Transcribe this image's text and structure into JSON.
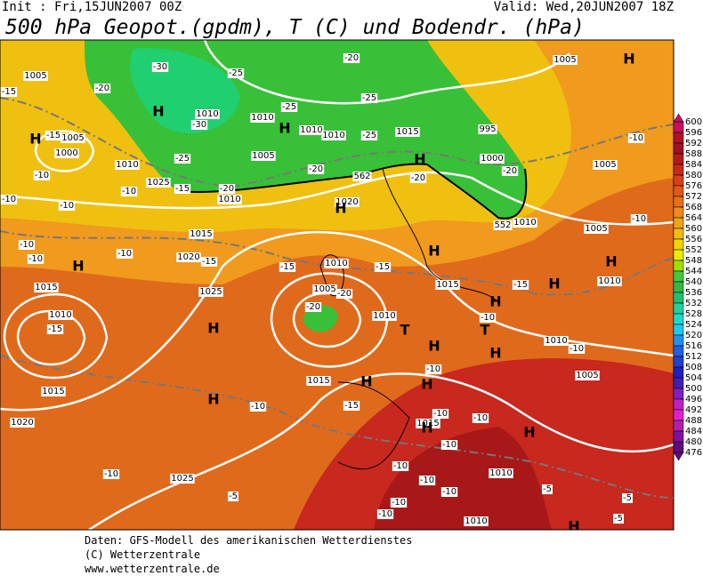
{
  "header": {
    "init": "Init : Fri,15JUN2007 00Z",
    "valid": "Valid: Wed,20JUN2007 18Z",
    "title": "500 hPa Geopot.(gpdm), T (C) und Bodendr. (hPa)"
  },
  "colorbar": {
    "levels": [
      600,
      596,
      592,
      588,
      584,
      580,
      576,
      572,
      568,
      564,
      560,
      556,
      552,
      548,
      544,
      540,
      536,
      532,
      528,
      524,
      520,
      516,
      512,
      508,
      504,
      500,
      496,
      492,
      488,
      484,
      480,
      476
    ],
    "colors": [
      "#c8105a",
      "#b0102a",
      "#a01020",
      "#b41a1a",
      "#c82a1a",
      "#d8401a",
      "#e0581a",
      "#e8701a",
      "#f08a1a",
      "#f0a41a",
      "#f0bc10",
      "#f0d400",
      "#e8ec00",
      "#a0e000",
      "#40c840",
      "#30b848",
      "#20c070",
      "#20d0a0",
      "#20d8d0",
      "#20c8f0",
      "#2090f0",
      "#2060e0",
      "#2040d0",
      "#2020c0",
      "#4020b0",
      "#8020c0",
      "#c020c0",
      "#e020d0",
      "#b020b0",
      "#8010a0",
      "#600880"
    ]
  },
  "map": {
    "labels": [
      "1005",
      "-20",
      "-30",
      "-25",
      "-20",
      "1005",
      "H",
      "-15",
      "1010",
      "-30",
      "1010",
      "-25",
      "-25",
      "H",
      "H",
      "H",
      "-15",
      "1005",
      "1015",
      "995",
      "-10",
      "-25",
      "1010",
      "1010",
      "1000",
      "1005",
      "-25",
      "H",
      "1000",
      "1005",
      "-20",
      "562",
      "-20",
      "1010",
      "-10",
      "-20",
      "-15",
      "-20",
      "1025",
      "1010",
      "-10",
      "-10",
      "-10",
      "1020",
      "H",
      "1015",
      "1010",
      "552",
      "1005",
      "-10",
      "-10",
      "-10",
      "-10",
      "1020",
      "-15",
      "H",
      "-15",
      "1010",
      "-15",
      "H",
      "H",
      "1010",
      "1015",
      "1025",
      "1015",
      "-15",
      "H",
      "1005",
      "-20",
      "H",
      "-20",
      "1010",
      "1010",
      "-10",
      "-15",
      "H",
      "T",
      "T",
      "1010",
      "H",
      "-10",
      "H",
      "-10",
      "1005",
      "1015",
      "H",
      "H",
      "1015",
      "H",
      "-10",
      "-15",
      "-10",
      "-10",
      "1015",
      "H",
      "H",
      "1020",
      "-10",
      "-10",
      "1025",
      "-10",
      "-10",
      "1010",
      "-5",
      "-10",
      "-5",
      "-5",
      "-10",
      "-10",
      "-5",
      "1010",
      "H"
    ]
  },
  "footer": {
    "lines": [
      "Daten: GFS-Modell des amerikanischen Wetterdienstes",
      "(C) Wetterzentrale",
      "www.wetterzentrale.de"
    ]
  }
}
